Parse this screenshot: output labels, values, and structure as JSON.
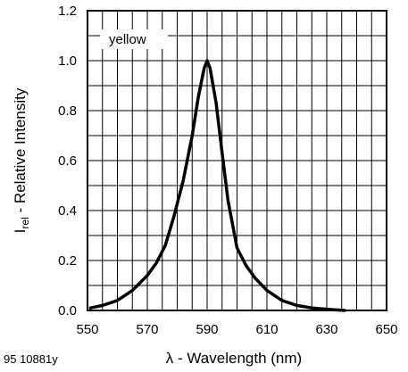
{
  "chart_data": {
    "type": "line",
    "xlabel": "λ - Wavelength (nm)",
    "ylabel_main": "I",
    "ylabel_sub": "rel",
    "ylabel_rest": " - Relative Intensity",
    "xlim": [
      550,
      650
    ],
    "ylim": [
      0,
      1.2
    ],
    "x_ticks": [
      550,
      570,
      590,
      610,
      630,
      650
    ],
    "x_tick_labels": [
      "550",
      "570",
      "590",
      "610",
      "630",
      "650"
    ],
    "y_ticks": [
      0,
      0.2,
      0.4,
      0.6,
      0.8,
      1.0,
      1.2
    ],
    "y_tick_labels": [
      "0.0",
      "0.2",
      "0.4",
      "0.6",
      "0.8",
      "1.0",
      "1.2"
    ],
    "x_grid_step": 5,
    "y_grid_step": 0.1,
    "grid": true,
    "series": [
      {
        "name": "yellow",
        "x": [
          551,
          555,
          560,
          565,
          570,
          573,
          576,
          579,
          582,
          585,
          587,
          589,
          590,
          591,
          593,
          595,
          597,
          600,
          603,
          606,
          610,
          615,
          620,
          625,
          630,
          636
        ],
        "y": [
          0.01,
          0.02,
          0.04,
          0.08,
          0.14,
          0.19,
          0.26,
          0.38,
          0.52,
          0.7,
          0.85,
          0.97,
          1.0,
          0.97,
          0.83,
          0.63,
          0.44,
          0.25,
          0.18,
          0.13,
          0.08,
          0.04,
          0.02,
          0.01,
          0.005,
          0.0
        ]
      }
    ],
    "annotations": {
      "figure_id": "95 10881y"
    }
  }
}
